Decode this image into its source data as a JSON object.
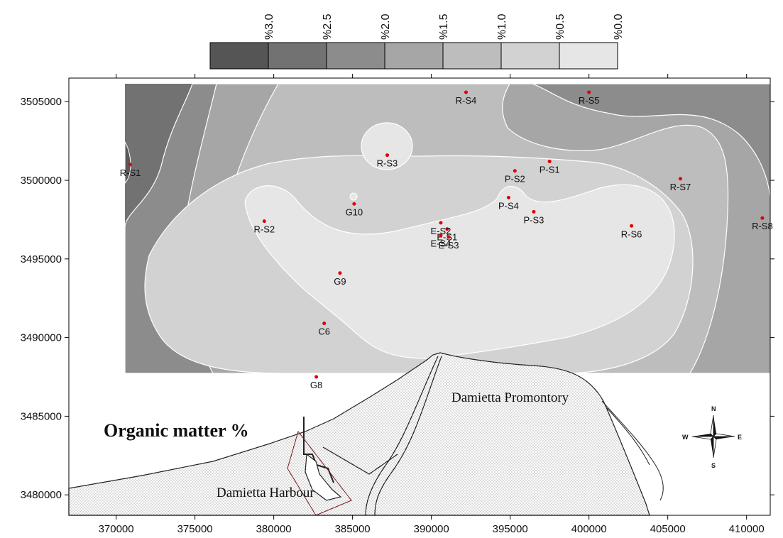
{
  "map": {
    "title": "Organic matter %",
    "places": {
      "promontory": "Damietta Promontory",
      "harbour": "Damietta Harbour"
    },
    "compass": {
      "n": "N",
      "s": "S",
      "e": "E",
      "w": "W"
    },
    "axes": {
      "x_ticks": [
        370000,
        375000,
        380000,
        385000,
        390000,
        395000,
        400000,
        405000,
        410000
      ],
      "y_ticks": [
        3480000,
        3485000,
        3490000,
        3495000,
        3500000,
        3505000
      ]
    },
    "legend": {
      "labels": [
        "%3.0",
        "%2.5",
        "%2.0",
        "%1.5",
        "%1.0",
        "%0.5",
        "%0.0"
      ],
      "colors": [
        "#555555",
        "#727272",
        "#8c8c8c",
        "#a6a6a6",
        "#bdbdbd",
        "#d2d2d2",
        "#e6e6e6"
      ]
    },
    "stations": [
      {
        "name": "R-S1",
        "x": 370900,
        "y": 3501000
      },
      {
        "name": "R-S2",
        "x": 379400,
        "y": 3497400
      },
      {
        "name": "R-S3",
        "x": 387200,
        "y": 3501600
      },
      {
        "name": "R-S4",
        "x": 392200,
        "y": 3505600
      },
      {
        "name": "R-S5",
        "x": 400000,
        "y": 3505600
      },
      {
        "name": "R-S6",
        "x": 402700,
        "y": 3497100
      },
      {
        "name": "R-S7",
        "x": 405800,
        "y": 3500100
      },
      {
        "name": "R-S8",
        "x": 411000,
        "y": 3497600
      },
      {
        "name": "P-S1",
        "x": 397500,
        "y": 3501200
      },
      {
        "name": "P-S2",
        "x": 395300,
        "y": 3500600
      },
      {
        "name": "P-S3",
        "x": 396500,
        "y": 3498000
      },
      {
        "name": "P-S4",
        "x": 394900,
        "y": 3498900
      },
      {
        "name": "G10",
        "x": 385100,
        "y": 3498500
      },
      {
        "name": "G9",
        "x": 384200,
        "y": 3494100
      },
      {
        "name": "G8",
        "x": 382700,
        "y": 3487500
      },
      {
        "name": "C6",
        "x": 383200,
        "y": 3490900
      },
      {
        "name": "E-S1",
        "x": 391000,
        "y": 3496900
      },
      {
        "name": "E-S2",
        "x": 390600,
        "y": 3497300
      },
      {
        "name": "E-S3",
        "x": 391100,
        "y": 3496400
      },
      {
        "name": "E-S4",
        "x": 390600,
        "y": 3496500
      }
    ]
  }
}
